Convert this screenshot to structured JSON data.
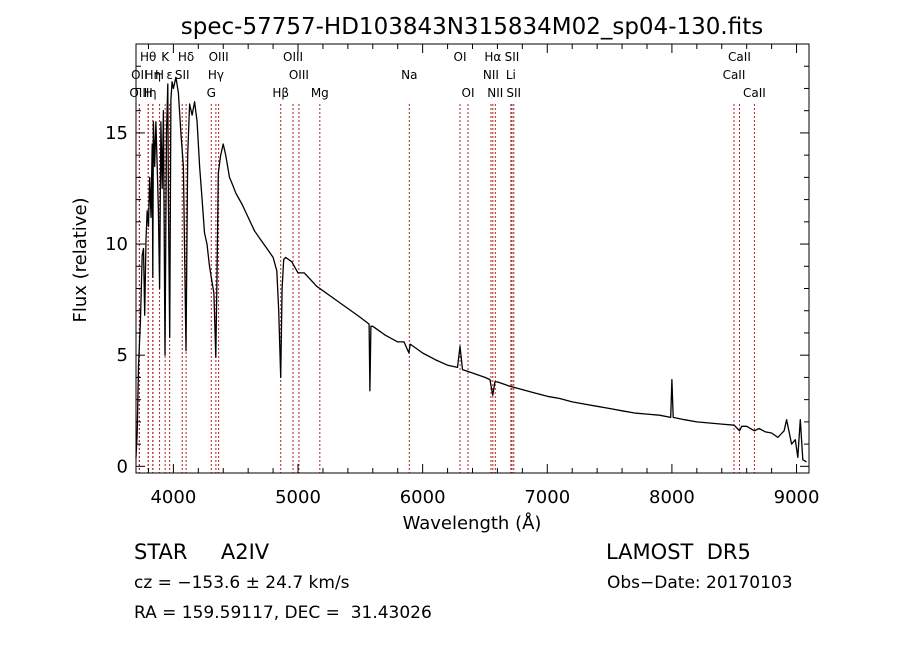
{
  "chart_data": {
    "type": "line",
    "title": "spec-57757-HD103843N315834M02_sp04-130.fits",
    "xlabel": "Wavelength (Å)",
    "ylabel": "Flux (relative)",
    "xlim": [
      3700,
      9100
    ],
    "ylim": [
      -0.3,
      19
    ],
    "xticks": [
      4000,
      5000,
      6000,
      7000,
      8000,
      9000
    ],
    "yticks": [
      0,
      5,
      10,
      15
    ],
    "grid": false,
    "series": [
      {
        "x": [
          3700,
          3710,
          3720,
          3735,
          3750,
          3760,
          3770,
          3780,
          3790,
          3800,
          3810,
          3820,
          3830,
          3835,
          3840,
          3850,
          3860,
          3870,
          3880,
          3889,
          3900,
          3910,
          3920,
          3933,
          3945,
          3955,
          3960,
          3970,
          3980,
          3990,
          4000,
          4020,
          4040,
          4060,
          4080,
          4101,
          4115,
          4130,
          4150,
          4170,
          4190,
          4210,
          4230,
          4250,
          4270,
          4290,
          4310,
          4325,
          4340,
          4350,
          4360,
          4380,
          4400,
          4420,
          4450,
          4480,
          4500,
          4550,
          4600,
          4650,
          4700,
          4750,
          4800,
          4830,
          4845,
          4861,
          4872,
          4885,
          4900,
          4950,
          5000,
          5050,
          5100,
          5150,
          5200,
          5300,
          5400,
          5500,
          5570,
          5577,
          5585,
          5600,
          5700,
          5800,
          5850,
          5890,
          5900,
          5950,
          6000,
          6100,
          6200,
          6280,
          6300,
          6320,
          6400,
          6500,
          6540,
          6563,
          6580,
          6600,
          6700,
          6800,
          6900,
          7000,
          7100,
          7200,
          7300,
          7400,
          7500,
          7600,
          7700,
          7800,
          7900,
          7990,
          8000,
          8010,
          8100,
          8200,
          8300,
          8400,
          8500,
          8542,
          8560,
          8600,
          8662,
          8700,
          8750,
          8800,
          8850,
          8900,
          8920,
          8960,
          8990,
          9010,
          9030,
          9050,
          9080
        ],
        "y": [
          0.4,
          1.5,
          4.5,
          6.5,
          9.5,
          9.8,
          6.8,
          10.2,
          11.5,
          10.8,
          13.0,
          11.2,
          14.5,
          8.5,
          15.5,
          13.5,
          15.5,
          13.5,
          11.5,
          8.0,
          15.5,
          12.5,
          16.0,
          5.0,
          15.0,
          17.2,
          12.0,
          5.8,
          16.5,
          17.3,
          17.0,
          17.5,
          16.8,
          15.0,
          13.5,
          5.2,
          14.0,
          16.3,
          15.8,
          16.4,
          15.5,
          13.5,
          12.0,
          10.5,
          10.0,
          9.0,
          8.3,
          7.8,
          4.9,
          8.5,
          13.2,
          14.0,
          14.5,
          14.0,
          13.0,
          12.6,
          12.3,
          11.8,
          11.2,
          10.6,
          10.2,
          9.8,
          9.4,
          8.8,
          7.0,
          4.0,
          8.0,
          9.3,
          9.4,
          9.2,
          8.7,
          8.7,
          8.4,
          8.1,
          7.9,
          7.5,
          7.1,
          6.7,
          6.4,
          3.4,
          6.3,
          6.3,
          5.9,
          5.6,
          5.6,
          5.1,
          5.5,
          5.3,
          5.1,
          4.8,
          4.55,
          4.45,
          5.4,
          4.35,
          4.2,
          4.0,
          3.9,
          3.2,
          3.8,
          3.8,
          3.6,
          3.45,
          3.3,
          3.15,
          3.05,
          2.9,
          2.8,
          2.7,
          2.6,
          2.5,
          2.4,
          2.35,
          2.3,
          2.2,
          3.9,
          2.2,
          2.1,
          2.0,
          1.95,
          1.9,
          1.85,
          1.6,
          1.8,
          1.8,
          1.6,
          1.7,
          1.55,
          1.5,
          1.3,
          1.6,
          2.1,
          1.0,
          1.2,
          0.4,
          2.1,
          0.3,
          0.2
        ],
        "color": "#000000"
      }
    ],
    "line_markers": [
      {
        "label": "Hθ",
        "wavelength": 3798,
        "row": 0
      },
      {
        "label": "K",
        "wavelength": 3934,
        "row": 0
      },
      {
        "label": "Hδ",
        "wavelength": 4102,
        "row": 0
      },
      {
        "label": "OIII",
        "wavelength": 4363,
        "row": 0
      },
      {
        "label": "OIII",
        "wavelength": 4960,
        "row": 0
      },
      {
        "label": "OI",
        "wavelength": 6300,
        "row": 0
      },
      {
        "label": "Hα",
        "wavelength": 6563,
        "row": 0
      },
      {
        "label": "SII",
        "wavelength": 6717,
        "row": 0
      },
      {
        "label": "CaII",
        "wavelength": 8542,
        "row": 0
      },
      {
        "label": "OII",
        "wavelength": 3727,
        "row": 1
      },
      {
        "label": "Hη",
        "wavelength": 3835,
        "row": 1
      },
      {
        "label": "H",
        "wavelength": 3889,
        "row": 1
      },
      {
        "label": "ε",
        "wavelength": 3970,
        "row": 1
      },
      {
        "label": "SII",
        "wavelength": 4071,
        "row": 1
      },
      {
        "label": "Hγ",
        "wavelength": 4341,
        "row": 1
      },
      {
        "label": "OIII",
        "wavelength": 5007,
        "row": 1
      },
      {
        "label": "Na",
        "wavelength": 5893,
        "row": 1
      },
      {
        "label": "NII",
        "wavelength": 6548,
        "row": 1
      },
      {
        "label": "Li",
        "wavelength": 6708,
        "row": 1
      },
      {
        "label": "CaII",
        "wavelength": 8498,
        "row": 1
      },
      {
        "label": "OIII",
        "wavelength": 3727,
        "row": 2
      },
      {
        "label": "H",
        "wavelength": 3798,
        "row": 2
      },
      {
        "label": "η",
        "wavelength": 3835,
        "row": 2
      },
      {
        "label": "G",
        "wavelength": 4304,
        "row": 2
      },
      {
        "label": "Hβ",
        "wavelength": 4861,
        "row": 2
      },
      {
        "label": "Mg",
        "wavelength": 5175,
        "row": 2
      },
      {
        "label": "OI",
        "wavelength": 6364,
        "row": 2
      },
      {
        "label": "NII",
        "wavelength": 6583,
        "row": 2
      },
      {
        "label": "SII",
        "wavelength": 6731,
        "row": 2
      },
      {
        "label": "CaII",
        "wavelength": 8662,
        "row": 2
      }
    ],
    "marker_color": "#b22222"
  },
  "footer": {
    "object_type": "STAR     A2IV",
    "survey": "LAMOST  DR5",
    "redshift": "cz = −153.6 ± 24.7 km/s",
    "obs_date": "Obs−Date: 20170103",
    "coords": "RA = 159.59117, DEC =  31.43026"
  }
}
